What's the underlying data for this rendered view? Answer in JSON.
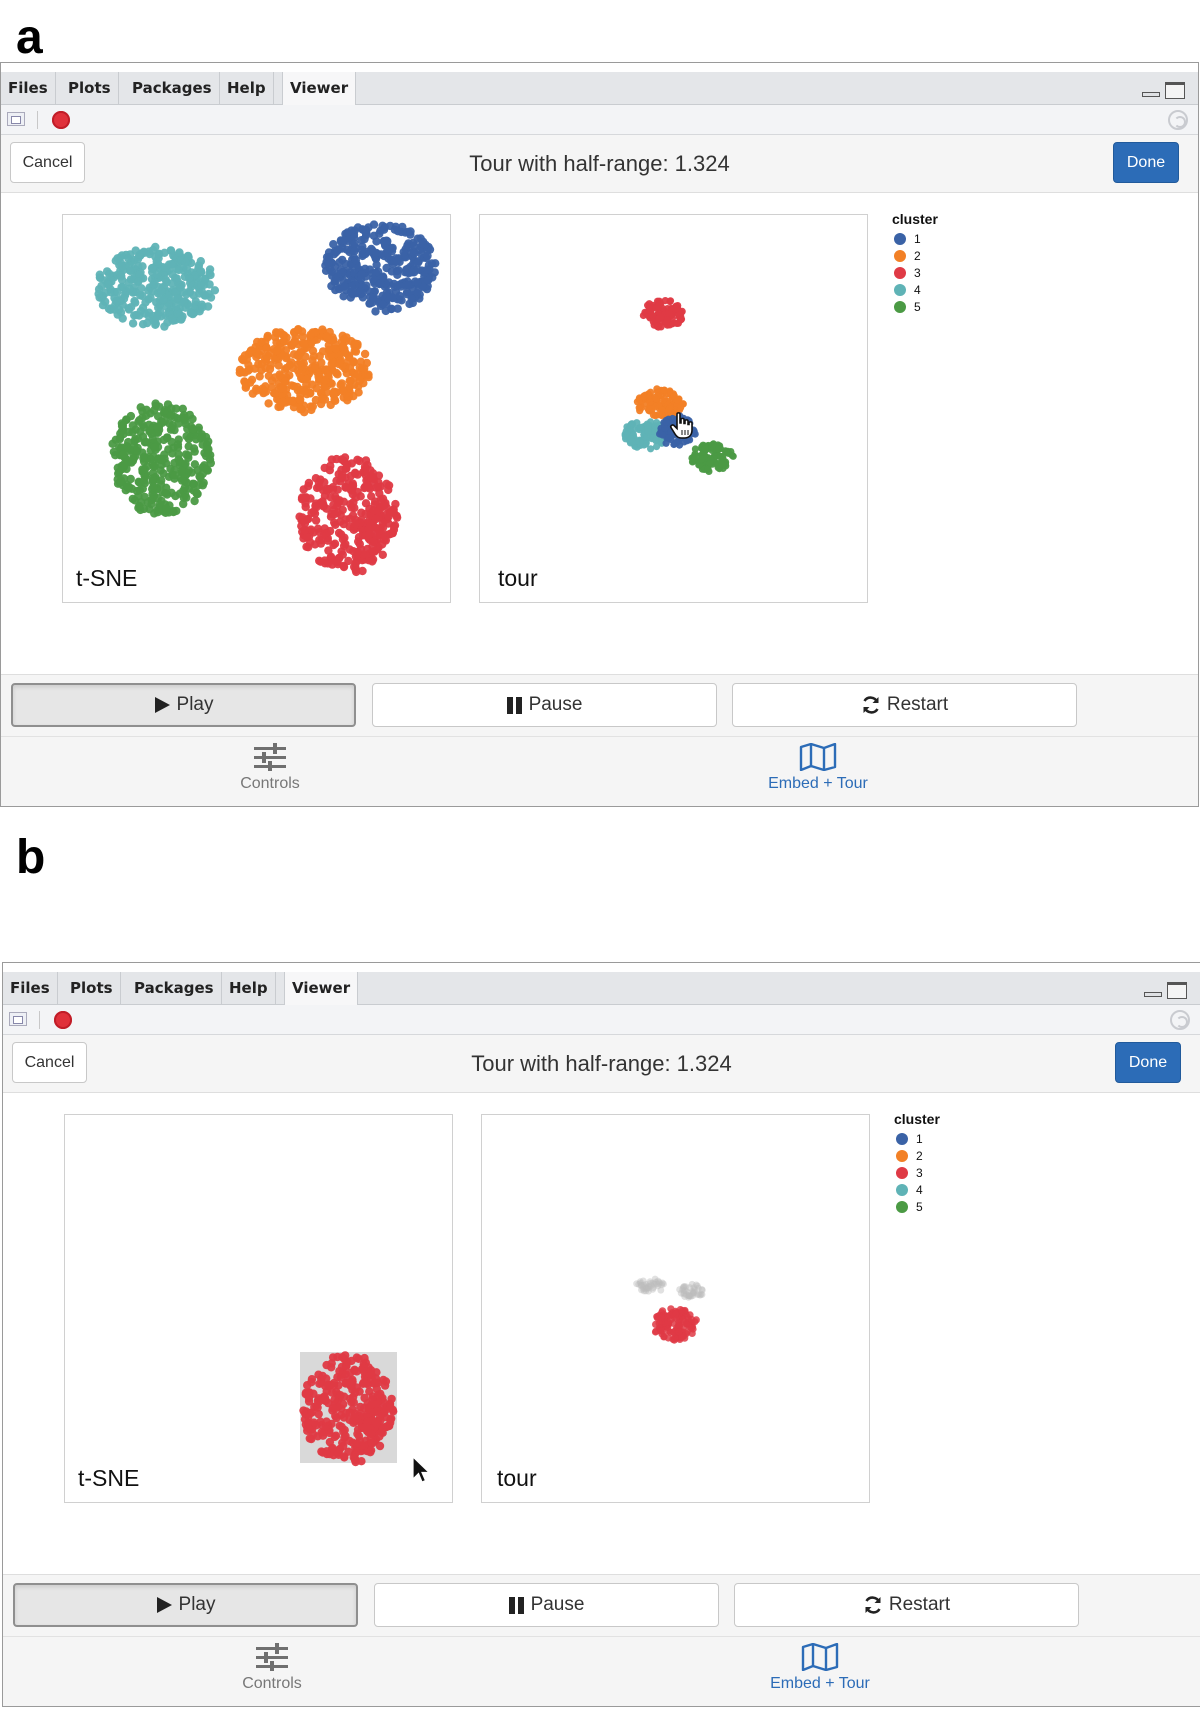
{
  "panel_a": {
    "letter": "a",
    "tabs": [
      "Files",
      "Plots",
      "Packages",
      "Help",
      "Viewer"
    ],
    "active_tab": "Viewer",
    "cancel_label": "Cancel",
    "title": "Tour with half-range: 1.324",
    "done_label": "Done",
    "left_plot_label": "t-SNE",
    "right_plot_label": "tour",
    "legend": {
      "title": "cluster",
      "items": [
        {
          "label": "1",
          "color": "#3a62a6"
        },
        {
          "label": "2",
          "color": "#f28026"
        },
        {
          "label": "3",
          "color": "#df3a45"
        },
        {
          "label": "4",
          "color": "#5fb3b6"
        },
        {
          "label": "5",
          "color": "#4b9a44"
        }
      ]
    },
    "play_label": "Play",
    "pause_label": "Pause",
    "restart_label": "Restart",
    "nav_controls_label": "Controls",
    "nav_embed_label": "Embed + Tour",
    "active_nav": "Embed + Tour"
  },
  "panel_b": {
    "letter": "b",
    "tabs": [
      "Files",
      "Plots",
      "Packages",
      "Help",
      "Viewer"
    ],
    "active_tab": "Viewer",
    "cancel_label": "Cancel",
    "title": "Tour with half-range: 1.324",
    "done_label": "Done",
    "left_plot_label": "t-SNE",
    "right_plot_label": "tour",
    "legend": {
      "title": "cluster",
      "items": [
        {
          "label": "1",
          "color": "#3a62a6"
        },
        {
          "label": "2",
          "color": "#f28026"
        },
        {
          "label": "3",
          "color": "#df3a45"
        },
        {
          "label": "4",
          "color": "#5fb3b6"
        },
        {
          "label": "5",
          "color": "#4b9a44"
        }
      ]
    },
    "play_label": "Play",
    "pause_label": "Pause",
    "restart_label": "Restart",
    "nav_controls_label": "Controls",
    "nav_embed_label": "Embed + Tour",
    "active_nav": "Embed + Tour"
  },
  "icons": {
    "play": "play-icon",
    "pause": "pause-icon",
    "restart": "refresh-icon",
    "controls": "sliders-icon",
    "embed": "map-icon",
    "stop": "stop-icon",
    "popout": "popout-icon"
  }
}
